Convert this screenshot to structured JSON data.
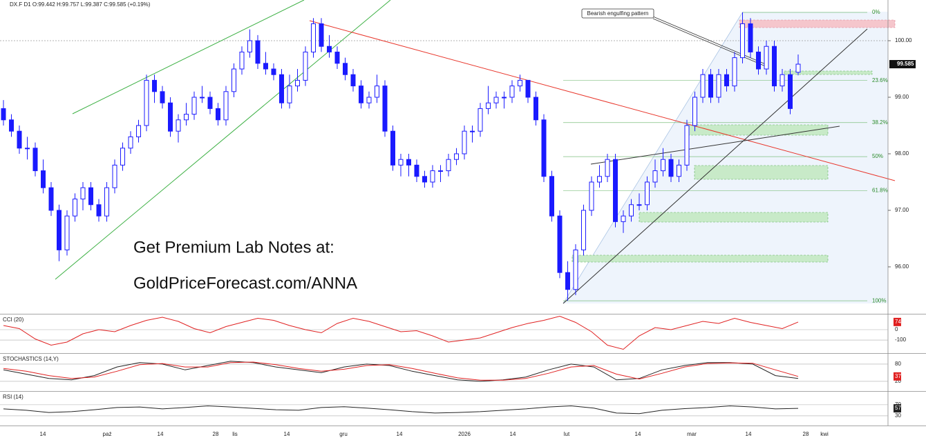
{
  "chart_data": [
    {
      "type": "candlestick",
      "title": "DX.F  D1  O:99.442  H:99.757  L:99.387  C:99.585  (+0.19%)",
      "color": "#1a1aff",
      "candles": [
        [
          98.8,
          98.95,
          98.5,
          98.6
        ],
        [
          98.6,
          98.7,
          98.3,
          98.4
        ],
        [
          98.4,
          98.5,
          98.0,
          98.1
        ],
        [
          98.1,
          98.3,
          97.9,
          98.1
        ],
        [
          98.1,
          98.2,
          97.6,
          97.7
        ],
        [
          97.7,
          97.9,
          97.3,
          97.4
        ],
        [
          97.4,
          97.5,
          96.9,
          97.0
        ],
        [
          97.0,
          97.1,
          96.1,
          96.3
        ],
        [
          96.3,
          97.0,
          96.2,
          96.9
        ],
        [
          96.9,
          97.3,
          96.8,
          97.2
        ],
        [
          97.2,
          97.5,
          97.0,
          97.4
        ],
        [
          97.4,
          97.5,
          97.0,
          97.1
        ],
        [
          97.1,
          97.2,
          96.8,
          96.9
        ],
        [
          96.9,
          97.5,
          96.8,
          97.4
        ],
        [
          97.4,
          97.9,
          97.3,
          97.8
        ],
        [
          97.8,
          98.2,
          97.7,
          98.1
        ],
        [
          98.1,
          98.4,
          98.0,
          98.3
        ],
        [
          98.3,
          98.6,
          98.2,
          98.5
        ],
        [
          98.5,
          99.4,
          98.4,
          99.3
        ],
        [
          99.3,
          99.4,
          98.9,
          99.1
        ],
        [
          99.1,
          99.2,
          98.8,
          98.9
        ],
        [
          98.9,
          99.0,
          98.3,
          98.4
        ],
        [
          98.4,
          98.7,
          98.2,
          98.6
        ],
        [
          98.6,
          98.9,
          98.5,
          98.7
        ],
        [
          98.7,
          99.1,
          98.6,
          99.0
        ],
        [
          99.0,
          99.2,
          98.9,
          99.0
        ],
        [
          99.0,
          99.1,
          98.7,
          98.8
        ],
        [
          98.8,
          98.9,
          98.5,
          98.6
        ],
        [
          98.6,
          99.2,
          98.5,
          99.1
        ],
        [
          99.1,
          99.6,
          99.0,
          99.5
        ],
        [
          99.5,
          99.9,
          99.4,
          99.8
        ],
        [
          99.8,
          100.2,
          99.7,
          100.0
        ],
        [
          100.0,
          100.1,
          99.5,
          99.6
        ],
        [
          99.6,
          99.8,
          99.4,
          99.5
        ],
        [
          99.5,
          99.6,
          99.3,
          99.4
        ],
        [
          99.4,
          99.5,
          98.8,
          98.9
        ],
        [
          98.9,
          99.4,
          98.8,
          99.2
        ],
        [
          99.2,
          99.5,
          99.1,
          99.3
        ],
        [
          99.3,
          99.9,
          99.2,
          99.8
        ],
        [
          99.8,
          100.4,
          99.7,
          100.3
        ],
        [
          100.3,
          100.4,
          99.8,
          99.9
        ],
        [
          99.9,
          100.1,
          99.7,
          99.8
        ],
        [
          99.8,
          99.9,
          99.5,
          99.6
        ],
        [
          99.6,
          99.7,
          99.3,
          99.4
        ],
        [
          99.4,
          99.5,
          99.1,
          99.2
        ],
        [
          99.2,
          99.3,
          98.8,
          98.9
        ],
        [
          98.9,
          99.1,
          98.8,
          99.0
        ],
        [
          99.0,
          99.4,
          98.9,
          99.2
        ],
        [
          99.2,
          99.3,
          98.3,
          98.4
        ],
        [
          98.4,
          98.5,
          97.7,
          97.8
        ],
        [
          97.8,
          98.0,
          97.6,
          97.9
        ],
        [
          97.9,
          98.0,
          97.6,
          97.8
        ],
        [
          97.8,
          97.9,
          97.5,
          97.6
        ],
        [
          97.6,
          97.7,
          97.4,
          97.5
        ],
        [
          97.5,
          97.8,
          97.4,
          97.7
        ],
        [
          97.7,
          97.8,
          97.5,
          97.7
        ],
        [
          97.7,
          98.0,
          97.6,
          97.9
        ],
        [
          97.9,
          98.1,
          97.8,
          98.0
        ],
        [
          98.0,
          98.5,
          97.9,
          98.4
        ],
        [
          98.4,
          98.5,
          98.2,
          98.4
        ],
        [
          98.4,
          98.9,
          98.3,
          98.8
        ],
        [
          98.8,
          99.2,
          98.7,
          98.9
        ],
        [
          98.9,
          99.1,
          98.8,
          99.0
        ],
        [
          99.0,
          99.1,
          98.8,
          99.0
        ],
        [
          99.0,
          99.3,
          98.9,
          99.2
        ],
        [
          99.2,
          99.4,
          99.1,
          99.3
        ],
        [
          99.3,
          99.3,
          98.9,
          99.0
        ],
        [
          99.0,
          99.1,
          98.5,
          98.6
        ],
        [
          98.6,
          98.7,
          97.5,
          97.6
        ],
        [
          97.6,
          97.7,
          96.8,
          96.9
        ],
        [
          96.9,
          97.0,
          95.8,
          95.9
        ],
        [
          95.9,
          96.1,
          95.4,
          95.6
        ],
        [
          95.6,
          96.4,
          95.5,
          96.3
        ],
        [
          96.3,
          97.1,
          96.2,
          97.0
        ],
        [
          97.0,
          97.6,
          96.9,
          97.5
        ],
        [
          97.5,
          97.8,
          97.4,
          97.6
        ],
        [
          97.6,
          98.0,
          97.5,
          97.9
        ],
        [
          97.9,
          98.0,
          96.7,
          96.8
        ],
        [
          96.8,
          97.0,
          96.6,
          96.9
        ],
        [
          96.9,
          97.2,
          96.8,
          97.1
        ],
        [
          97.1,
          97.3,
          97.0,
          97.1
        ],
        [
          97.1,
          97.6,
          97.0,
          97.5
        ],
        [
          97.5,
          97.9,
          97.4,
          97.7
        ],
        [
          97.7,
          98.1,
          97.6,
          97.9
        ],
        [
          97.9,
          98.0,
          97.5,
          97.6
        ],
        [
          97.6,
          97.9,
          97.5,
          97.8
        ],
        [
          97.8,
          98.6,
          97.7,
          98.5
        ],
        [
          98.5,
          99.1,
          98.4,
          99.0
        ],
        [
          99.0,
          99.5,
          98.9,
          99.4
        ],
        [
          99.4,
          99.5,
          98.9,
          99.0
        ],
        [
          99.0,
          99.5,
          98.9,
          99.4
        ],
        [
          99.4,
          99.5,
          99.1,
          99.2
        ],
        [
          99.2,
          99.8,
          99.1,
          99.7
        ],
        [
          99.7,
          100.5,
          99.6,
          100.3
        ],
        [
          100.3,
          100.4,
          99.7,
          99.8
        ],
        [
          99.8,
          99.9,
          99.4,
          99.5
        ],
        [
          99.5,
          100.0,
          99.4,
          99.9
        ],
        [
          99.9,
          100.0,
          99.1,
          99.2
        ],
        [
          99.2,
          99.5,
          99.1,
          99.4
        ],
        [
          99.4,
          99.5,
          98.7,
          98.8
        ],
        [
          99.442,
          99.757,
          99.387,
          99.585
        ]
      ],
      "ylim": [
        95.17,
        100.72
      ],
      "yticks": [
        {
          "value": 96,
          "label": "96.00"
        },
        {
          "value": 97,
          "label": "97.00"
        },
        {
          "value": 98,
          "label": "98.00"
        },
        {
          "value": 99,
          "label": "99.00"
        },
        {
          "value": 100,
          "label": "100.00"
        }
      ],
      "fib_levels": [
        {
          "value": 0,
          "label": "0%"
        },
        {
          "value": 23.6,
          "label": "23.6%"
        },
        {
          "value": 38.2,
          "label": "38.2%"
        },
        {
          "value": 50,
          "label": "50%"
        },
        {
          "value": 61.8,
          "label": "61.8%"
        },
        {
          "value": 100,
          "label": "100%"
        }
      ],
      "xlabels": [
        "14",
        "paź",
        "14",
        "28",
        "lis",
        "14",
        "gru",
        "14",
        "2026",
        "14",
        "lut",
        "14",
        "mar",
        "14",
        "28",
        "kwi"
      ],
      "pattern_note": "Bearish engulfing pattern",
      "promo": [
        "Get Premium Lab Notes at:",
        "GoldPriceForecast.com/ANNA"
      ],
      "grid": false
    },
    {
      "type": "line",
      "title": "CCI (20)",
      "ylim": [
        -213,
        133
      ],
      "yticks": [
        0,
        -100
      ],
      "grid": true,
      "series": [
        {
          "color": "#e02020",
          "values": [
            40,
            10,
            -90,
            -150,
            -120,
            -40,
            0,
            -20,
            40,
            90,
            120,
            80,
            10,
            -30,
            30,
            70,
            110,
            90,
            40,
            0,
            -30,
            60,
            110,
            80,
            30,
            -20,
            -10,
            -60,
            -120,
            -100,
            -80,
            -30,
            20,
            60,
            90,
            130,
            70,
            -20,
            -150,
            -190,
            -60,
            20,
            0,
            40,
            80,
            60,
            110,
            70,
            40,
            10,
            74
          ]
        }
      ]
    },
    {
      "type": "line",
      "title": "STOCHASTICS (14,Y)",
      "ylim": [
        -9,
        111
      ],
      "yticks": [
        80,
        20
      ],
      "grid": true,
      "series": [
        {
          "color": "#222222",
          "values": [
            60,
            45,
            30,
            25,
            40,
            70,
            85,
            80,
            60,
            75,
            90,
            85,
            70,
            60,
            50,
            70,
            80,
            75,
            55,
            40,
            25,
            20,
            25,
            35,
            60,
            80,
            70,
            25,
            30,
            60,
            75,
            85,
            85,
            80,
            40,
            30
          ]
        },
        {
          "color": "#e02020",
          "values": [
            65,
            55,
            40,
            30,
            35,
            55,
            78,
            82,
            70,
            70,
            85,
            87,
            78,
            65,
            55,
            62,
            75,
            78,
            65,
            48,
            32,
            24,
            24,
            30,
            48,
            70,
            75,
            45,
            28,
            48,
            70,
            82,
            84,
            83,
            60,
            37
          ]
        }
      ]
    },
    {
      "type": "line",
      "title": "RSI (14)",
      "ylim": [
        0,
        112
      ],
      "yticks": [
        70,
        30
      ],
      "grid": true,
      "series": [
        {
          "color": "#222222",
          "values": [
            55,
            50,
            42,
            45,
            52,
            60,
            62,
            55,
            60,
            66,
            62,
            57,
            52,
            50,
            60,
            63,
            58,
            52,
            45,
            40,
            42,
            45,
            50,
            55,
            62,
            66,
            58,
            40,
            38,
            50,
            56,
            60,
            66,
            62,
            55,
            57
          ]
        }
      ]
    }
  ]
}
